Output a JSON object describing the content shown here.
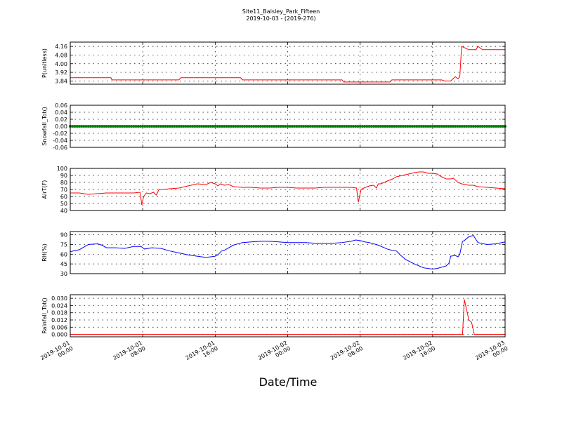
{
  "chart_data": {
    "type": "line",
    "title": "Site11_Baisley_Park_Fifteen",
    "subtitle": "2019-10-03 - (2019-276)",
    "xlabel": "Date/Time",
    "x_range": [
      "2019-10-01 00:00",
      "2019-10-03 00:00"
    ],
    "x_ticks": [
      {
        "t": 0,
        "line1": "2019-10-01",
        "line2": "00:00"
      },
      {
        "t": 8,
        "line1": "2019-10-01",
        "line2": "08:00"
      },
      {
        "t": 16,
        "line1": "2019-10-01",
        "line2": "16:00"
      },
      {
        "t": 24,
        "line1": "2019-10-02",
        "line2": "00:00"
      },
      {
        "t": 32,
        "line1": "2019-10-02",
        "line2": "08:00"
      },
      {
        "t": 40,
        "line1": "2019-10-02",
        "line2": "16:00"
      },
      {
        "t": 48,
        "line1": "2019-10-03",
        "line2": "00:00"
      }
    ],
    "grid": true,
    "panels": [
      {
        "ylabel": "P(unitless)",
        "color": "#ff0000",
        "ylim": [
          3.81,
          4.2
        ],
        "ticks": [
          3.84,
          3.92,
          4.0,
          4.08,
          4.16
        ],
        "tick_labels": [
          "3.84",
          "3.92",
          "4.00",
          "4.08",
          "4.16"
        ],
        "step": true,
        "x": [
          0,
          4.5,
          4.6,
          12,
          12.2,
          18.8,
          19,
          30,
          30.2,
          35.3,
          35.5,
          41,
          41.3,
          42,
          42.5,
          42.8,
          43,
          43.2,
          44,
          44.8,
          45,
          45.5,
          47.8,
          48
        ],
        "y": [
          3.87,
          3.87,
          3.85,
          3.85,
          3.87,
          3.87,
          3.85,
          3.85,
          3.83,
          3.83,
          3.85,
          3.85,
          3.84,
          3.84,
          3.88,
          3.86,
          3.88,
          4.16,
          4.13,
          4.13,
          4.16,
          4.13,
          4.13,
          4.13
        ]
      },
      {
        "ylabel": "Snowfall_Tot()",
        "color": "#008000",
        "ylim": [
          -0.06,
          0.06
        ],
        "ticks": [
          -0.06,
          -0.04,
          -0.02,
          0.0,
          0.02,
          0.04,
          0.06
        ],
        "tick_labels": [
          "-0.06",
          "-0.04",
          "-0.02",
          "0.00",
          "0.02",
          "0.04",
          "0.06"
        ],
        "markers": true,
        "x": [
          0,
          48
        ],
        "y": [
          0,
          0
        ]
      },
      {
        "ylabel": "AirT(F)",
        "color": "#ff0000",
        "ylim": [
          40,
          100
        ],
        "ticks": [
          40,
          50,
          60,
          70,
          80,
          90,
          100
        ],
        "tick_labels": [
          "40",
          "50",
          "60",
          "70",
          "80",
          "90",
          "100"
        ],
        "x": [
          0,
          1,
          2,
          3,
          4,
          5,
          6,
          7,
          7.7,
          7.9,
          8.1,
          8.4,
          8.8,
          9.2,
          9.5,
          9.8,
          10.3,
          11,
          12,
          13,
          14,
          15,
          15.5,
          16,
          16.3,
          16.6,
          17,
          17.5,
          18,
          19,
          20,
          21,
          22,
          23,
          24,
          25,
          26,
          27,
          28,
          29,
          30,
          31,
          31.6,
          31.8,
          32.1,
          32.4,
          33,
          33.5,
          33.8,
          34,
          34.3,
          35,
          35.6,
          36,
          37,
          38,
          38.5,
          39,
          39.5,
          40,
          40.5,
          41,
          41.5,
          42,
          42.3,
          42.8,
          43.2,
          44,
          44.5,
          45,
          46,
          47,
          48
        ],
        "y": [
          65,
          65,
          63,
          64,
          65,
          65,
          65,
          65,
          66,
          48,
          60,
          65,
          64,
          66,
          62,
          70,
          70,
          71,
          72,
          75,
          78,
          77,
          80,
          78,
          75,
          78,
          76,
          77,
          74,
          73,
          73,
          72,
          72,
          73,
          73,
          72,
          72,
          72,
          73,
          73,
          73,
          73,
          72,
          52,
          70,
          72,
          75,
          76,
          72,
          78,
          78,
          82,
          85,
          88,
          91,
          94,
          95,
          95,
          93,
          93,
          92,
          88,
          85,
          85,
          86,
          80,
          78,
          76,
          76,
          74,
          73,
          72,
          71
        ]
      },
      {
        "ylabel": "RH(%)",
        "color": "#0000ff",
        "ylim": [
          30,
          95
        ],
        "ticks": [
          30,
          45,
          60,
          75,
          90
        ],
        "tick_labels": [
          "30",
          "45",
          "60",
          "75",
          "90"
        ],
        "x": [
          0,
          1,
          2,
          3,
          3.5,
          4,
          5,
          6,
          7,
          7.8,
          8.2,
          9,
          10,
          11,
          12,
          13,
          14,
          15,
          15.5,
          16,
          16.3,
          16.7,
          17,
          18,
          19,
          20,
          21,
          22,
          23,
          24,
          25,
          26,
          27,
          28,
          29,
          30,
          31,
          31.5,
          32,
          32.5,
          33,
          34,
          35,
          35.5,
          36,
          36.5,
          37,
          38,
          39,
          40,
          40.5,
          41,
          41.5,
          41.8,
          42,
          42.5,
          42.8,
          43,
          43.3,
          43.5,
          44,
          44.5,
          45,
          46,
          47,
          48
        ],
        "y": [
          64,
          67,
          75,
          76,
          74,
          70,
          70,
          69,
          72,
          72,
          68,
          70,
          69,
          65,
          62,
          59,
          57,
          55,
          56,
          57,
          59,
          65,
          66,
          74,
          78,
          79,
          80,
          80,
          79,
          78,
          78,
          78,
          77,
          77,
          77,
          78,
          80,
          82,
          81,
          79,
          78,
          74,
          68,
          66,
          65,
          58,
          52,
          45,
          39,
          37,
          38,
          40,
          42,
          46,
          57,
          58,
          56,
          60,
          80,
          81,
          87,
          89,
          78,
          75,
          76,
          79
        ]
      },
      {
        "ylabel": "Rainfall_Tot()",
        "color": "#ff0000",
        "ylim": [
          -0.002,
          0.033
        ],
        "ticks": [
          0.0,
          0.006,
          0.012,
          0.018,
          0.024,
          0.03
        ],
        "tick_labels": [
          "0.000",
          "0.006",
          "0.012",
          "0.018",
          "0.024",
          "0.030"
        ],
        "x": [
          0,
          43.3,
          43.5,
          44.0,
          44.3,
          44.6,
          44.8,
          48
        ],
        "y": [
          0,
          0,
          0.029,
          0.012,
          0.01,
          0,
          0,
          0
        ]
      }
    ]
  }
}
